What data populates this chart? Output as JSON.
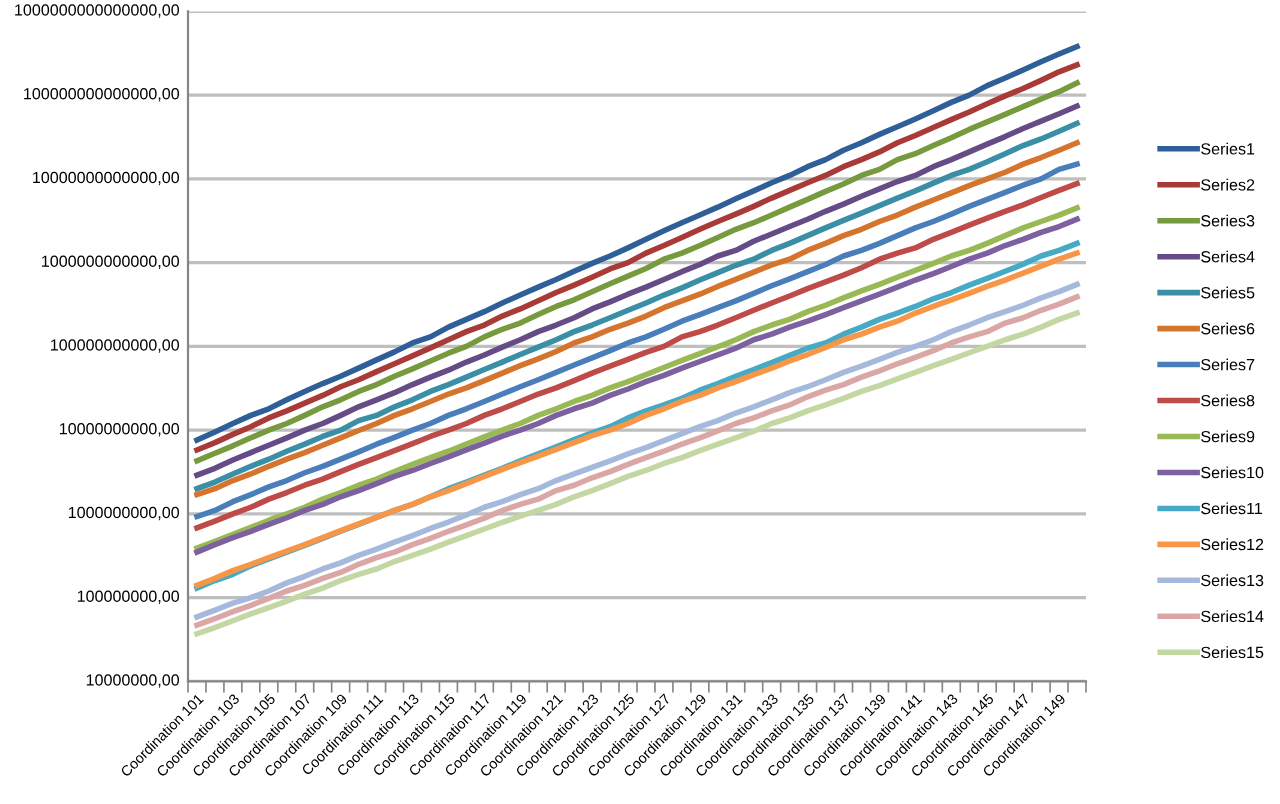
{
  "chart_data": {
    "type": "line",
    "categories": [
      "Coordination 101",
      null,
      "Coordination 103",
      null,
      "Coordination 105",
      null,
      "Coordination 107",
      null,
      "Coordination 109",
      null,
      "Coordination 111",
      null,
      "Coordination 113",
      null,
      "Coordination 115",
      null,
      "Coordination 117",
      null,
      "Coordination 119",
      null,
      "Coordination 121",
      null,
      "Coordination 123",
      null,
      "Coordination 125",
      null,
      "Coordination 127",
      null,
      "Coordination 129",
      null,
      "Coordination 131",
      null,
      "Coordination 133",
      null,
      "Coordination 135",
      null,
      "Coordination 137",
      null,
      "Coordination 139",
      null,
      "Coordination 141",
      null,
      "Coordination 143",
      null,
      "Coordination 145",
      null,
      "Coordination 147",
      null,
      "Coordination 149",
      null
    ],
    "log": "y",
    "ylim": [
      10000000.0,
      1000000000000000.0
    ],
    "yticks": [
      {
        "value": 10000000.0,
        "label": "10000000,00"
      },
      {
        "value": 100000000.0,
        "label": "100000000,00"
      },
      {
        "value": 1000000000.0,
        "label": "1000000000,00"
      },
      {
        "value": 10000000000.0,
        "label": "10000000000,00"
      },
      {
        "value": 100000000000.0,
        "label": "100000000000,00"
      },
      {
        "value": 1000000000000.0,
        "label": "1000000000000,00"
      },
      {
        "value": 10000000000000.0,
        "label": "10000000000000,00"
      },
      {
        "value": 100000000000000.0,
        "label": "100000000000000,00"
      },
      {
        "value": 1000000000000000.0,
        "label": "1000000000000000,00"
      }
    ],
    "grid": "y",
    "legend": "right",
    "marker": "none",
    "line_style": "solid",
    "series": [
      {
        "name": "Series1",
        "color": "#2f5f98",
        "values": [
          7600000000.0,
          9500000000.0,
          12000000000.0,
          15000000000.0,
          18000000000.0,
          23000000000.0,
          29000000000.0,
          36000000000.0,
          44000000000.0,
          55000000000.0,
          69000000000.0,
          86000000000.0,
          110000000000.0,
          130000000000.0,
          170000000000.0,
          210000000000.0,
          260000000000.0,
          330000000000.0,
          410000000000.0,
          510000000000.0,
          630000000000.0,
          790000000000.0,
          980000000000.0,
          1200000000000.0,
          1500000000000.0,
          1900000000000.0,
          2400000000000.0,
          3000000000000.0,
          3700000000000.0,
          4600000000000.0,
          5800000000000.0,
          7200000000000.0,
          9000000000000.0,
          11000000000000.0,
          14000000000000.0,
          17000000000000.0,
          22000000000000.0,
          27000000000000.0,
          34000000000000.0,
          42000000000000.0,
          52000000000000.0,
          65000000000000.0,
          82000000000000.0,
          100000000000000.0,
          130000000000000.0,
          160000000000000.0,
          200000000000000.0,
          250000000000000.0,
          310000000000000.0,
          380000000000000.0
        ]
      },
      {
        "name": "Series2",
        "color": "#a83a37",
        "values": [
          5800000000.0,
          7100000000.0,
          8900000000.0,
          11000000000.0,
          14000000000.0,
          17000000000.0,
          21000000000.0,
          26000000000.0,
          33000000000.0,
          40000000000.0,
          50000000000.0,
          62000000000.0,
          77000000000.0,
          96000000000.0,
          120000000000.0,
          150000000000.0,
          180000000000.0,
          230000000000.0,
          280000000000.0,
          350000000000.0,
          440000000000.0,
          540000000000.0,
          670000000000.0,
          840000000000.0,
          1000000000000.0,
          1300000000000.0,
          1600000000000.0,
          2000000000000.0,
          2500000000000.0,
          3100000000000.0,
          3800000000000.0,
          4700000000000.0,
          5900000000000.0,
          7300000000000.0,
          9000000000000.0,
          11000000000000.0,
          14000000000000.0,
          17000000000000.0,
          21000000000000.0,
          27000000000000.0,
          33000000000000.0,
          41000000000000.0,
          51000000000000.0,
          63000000000000.0,
          79000000000000.0,
          98000000000000.0,
          120000000000000.0,
          150000000000000.0,
          190000000000000.0,
          230000000000000.0
        ]
      },
      {
        "name": "Series3",
        "color": "#779a3e",
        "values": [
          4300000000.0,
          5300000000.0,
          6500000000.0,
          8100000000.0,
          10000000000.0,
          12000000000.0,
          15000000000.0,
          19000000000.0,
          23000000000.0,
          29000000000.0,
          35000000000.0,
          44000000000.0,
          54000000000.0,
          67000000000.0,
          83000000000.0,
          100000000000.0,
          130000000000.0,
          160000000000.0,
          190000000000.0,
          240000000000.0,
          300000000000.0,
          360000000000.0,
          450000000000.0,
          560000000000.0,
          690000000000.0,
          850000000000.0,
          1100000000000.0,
          1300000000000.0,
          1600000000000.0,
          2000000000000.0,
          2500000000000.0,
          3000000000000.0,
          3700000000000.0,
          4600000000000.0,
          5700000000000.0,
          7100000000000.0,
          8700000000000.0,
          11000000000000.0,
          13000000000000.0,
          17000000000000.0,
          20000000000000.0,
          25000000000000.0,
          31000000000000.0,
          39000000000000.0,
          48000000000000.0,
          59000000000000.0,
          73000000000000.0,
          90000000000000.0,
          110000000000000.0,
          140000000000000.0
        ]
      },
      {
        "name": "Series4",
        "color": "#654c86",
        "values": [
          2900000000.0,
          3500000000.0,
          4400000000.0,
          5400000000.0,
          6600000000.0,
          8100000000.0,
          10000000000.0,
          12000000000.0,
          15000000000.0,
          19000000000.0,
          23000000000.0,
          28000000000.0,
          35000000000.0,
          43000000000.0,
          52000000000.0,
          65000000000.0,
          79000000000.0,
          98000000000.0,
          120000000000.0,
          150000000000.0,
          180000000000.0,
          220000000000.0,
          280000000000.0,
          340000000000.0,
          420000000000.0,
          510000000000.0,
          630000000000.0,
          780000000000.0,
          950000000000.0,
          1200000000000.0,
          1400000000000.0,
          1800000000000.0,
          2200000000000.0,
          2700000000000.0,
          3300000000000.0,
          4100000000000.0,
          5000000000000.0,
          6200000000000.0,
          7600000000000.0,
          9300000000000.0,
          11000000000000.0,
          14000000000000.0,
          17000000000000.0,
          21000000000000.0,
          26000000000000.0,
          32000000000000.0,
          40000000000000.0,
          49000000000000.0,
          60000000000000.0,
          74000000000000.0
        ]
      },
      {
        "name": "Series5",
        "color": "#3a8ea6",
        "values": [
          2000000000.0,
          2400000000.0,
          3000000000.0,
          3700000000.0,
          4500000000.0,
          5600000000.0,
          6800000000.0,
          8400000000.0,
          10000000000.0,
          13000000000.0,
          15000000000.0,
          19000000000.0,
          23000000000.0,
          29000000000.0,
          35000000000.0,
          43000000000.0,
          53000000000.0,
          65000000000.0,
          80000000000.0,
          98000000000.0,
          120000000000.0,
          150000000000.0,
          180000000000.0,
          220000000000.0,
          270000000000.0,
          330000000000.0,
          410000000000.0,
          500000000000.0,
          620000000000.0,
          760000000000.0,
          930000000000.0,
          1100000000000.0,
          1400000000000.0,
          1700000000000.0,
          2100000000000.0,
          2600000000000.0,
          3200000000000.0,
          3900000000000.0,
          4800000000000.0,
          5900000000000.0,
          7200000000000.0,
          8900000000000.0,
          11000000000000.0,
          13000000000000.0,
          16000000000000.0,
          20000000000000.0,
          25000000000000.0,
          30000000000000.0,
          37000000000000.0,
          46000000000000.0
        ]
      },
      {
        "name": "Series6",
        "color": "#d5742d",
        "values": [
          1700000000.0,
          2000000000.0,
          2500000000.0,
          3000000000.0,
          3700000000.0,
          4500000000.0,
          5400000000.0,
          6600000000.0,
          8100000000.0,
          9900000000.0,
          12000000000.0,
          15000000000.0,
          18000000000.0,
          22000000000.0,
          27000000000.0,
          32000000000.0,
          39000000000.0,
          48000000000.0,
          59000000000.0,
          71000000000.0,
          87000000000.0,
          110000000000.0,
          130000000000.0,
          160000000000.0,
          190000000000.0,
          230000000000.0,
          290000000000.0,
          350000000000.0,
          420000000000.0,
          520000000000.0,
          630000000000.0,
          770000000000.0,
          940000000000.0,
          1100000000000.0,
          1400000000000.0,
          1700000000000.0,
          2100000000000.0,
          2500000000000.0,
          3100000000000.0,
          3700000000000.0,
          4600000000000.0,
          5600000000000.0,
          6800000000000.0,
          8300000000000.0,
          10000000000000.0,
          12000000000000.0,
          15000000000000.0,
          18000000000000.0,
          22000000000000.0,
          27000000000000.0
        ]
      },
      {
        "name": "Series7",
        "color": "#4a7ebb",
        "values": [
          930000000.0,
          1100000000.0,
          1400000000.0,
          1700000000.0,
          2100000000.0,
          2500000000.0,
          3100000000.0,
          3700000000.0,
          4500000000.0,
          5500000000.0,
          6800000000.0,
          8200000000.0,
          10000000000.0,
          12000000000.0,
          15000000000.0,
          18000000000.0,
          22000000000.0,
          27000000000.0,
          33000000000.0,
          40000000000.0,
          49000000000.0,
          60000000000.0,
          73000000000.0,
          89000000000.0,
          110000000000.0,
          130000000000.0,
          160000000000.0,
          200000000000.0,
          240000000000.0,
          290000000000.0,
          350000000000.0,
          430000000000.0,
          530000000000.0,
          640000000000.0,
          780000000000.0,
          950000000000.0,
          1200000000000.0,
          1400000000000.0,
          1700000000000.0,
          2100000000000.0,
          2600000000000.0,
          3100000000000.0,
          3800000000000.0,
          4700000000000.0,
          5700000000000.0,
          6900000000000.0,
          8400000000000.0,
          10000000000000.0,
          13000000000000.0,
          15000000000000.0
        ]
      },
      {
        "name": "Series8",
        "color": "#be4b48",
        "values": [
          680000000.0,
          820000000.0,
          1000000000.0,
          1200000000.0,
          1500000000.0,
          1800000000.0,
          2200000000.0,
          2600000000.0,
          3200000000.0,
          3900000000.0,
          4700000000.0,
          5700000000.0,
          6900000000.0,
          8400000000.0,
          10000000000.0,
          12000000000.0,
          15000000000.0,
          18000000000.0,
          22000000000.0,
          27000000000.0,
          32000000000.0,
          39000000000.0,
          48000000000.0,
          58000000000.0,
          70000000000.0,
          85000000000.0,
          100000000000.0,
          130000000000.0,
          150000000000.0,
          180000000000.0,
          220000000000.0,
          270000000000.0,
          330000000000.0,
          400000000000.0,
          490000000000.0,
          590000000000.0,
          710000000000.0,
          870000000000.0,
          1100000000000.0,
          1300000000000.0,
          1500000000000.0,
          1900000000000.0,
          2300000000000.0,
          2800000000000.0,
          3400000000000.0,
          4100000000000.0,
          4900000000000.0,
          6000000000000.0,
          7300000000000.0,
          8800000000000.0
        ]
      },
      {
        "name": "Series9",
        "color": "#98b954",
        "values": [
          390000000.0,
          470000000.0,
          570000000.0,
          690000000.0,
          840000000.0,
          1000000000.0,
          1200000000.0,
          1500000000.0,
          1800000000.0,
          2200000000.0,
          2600000000.0,
          3200000000.0,
          3900000000.0,
          4700000000.0,
          5600000000.0,
          6800000000.0,
          8300000000.0,
          10000000000.0,
          12000000000.0,
          15000000000.0,
          18000000000.0,
          22000000000.0,
          26000000000.0,
          32000000000.0,
          38000000000.0,
          46000000000.0,
          56000000000.0,
          68000000000.0,
          82000000000.0,
          99000000000.0,
          120000000000.0,
          150000000000.0,
          180000000000.0,
          210000000000.0,
          260000000000.0,
          310000000000.0,
          380000000000.0,
          460000000000.0,
          550000000000.0,
          670000000000.0,
          810000000000.0,
          980000000000.0,
          1200000000000.0,
          1400000000000.0,
          1700000000000.0,
          2100000000000.0,
          2600000000000.0,
          3100000000000.0,
          3700000000000.0,
          4500000000000.0
        ]
      },
      {
        "name": "Series10",
        "color": "#7d60a0",
        "values": [
          350000000.0,
          430000000.0,
          520000000.0,
          620000000.0,
          750000000.0,
          900000000.0,
          1100000000.0,
          1300000000.0,
          1600000000.0,
          1900000000.0,
          2300000000.0,
          2800000000.0,
          3300000000.0,
          4000000000.0,
          4800000000.0,
          5800000000.0,
          7000000000.0,
          8500000000.0,
          10000000000.0,
          12000000000.0,
          15000000000.0,
          18000000000.0,
          21000000000.0,
          26000000000.0,
          31000000000.0,
          38000000000.0,
          45000000000.0,
          55000000000.0,
          66000000000.0,
          79000000000.0,
          95000000000.0,
          120000000000.0,
          140000000000.0,
          170000000000.0,
          200000000000.0,
          240000000000.0,
          290000000000.0,
          350000000000.0,
          420000000000.0,
          510000000000.0,
          620000000000.0,
          740000000000.0,
          900000000000.0,
          1100000000000.0,
          1300000000000.0,
          1600000000000.0,
          1900000000000.0,
          2300000000000.0,
          2700000000000.0,
          3300000000000.0
        ]
      },
      {
        "name": "Series11",
        "color": "#46aac5",
        "values": [
          130000000.0,
          160000000.0,
          190000000.0,
          240000000.0,
          290000000.0,
          350000000.0,
          420000000.0,
          510000000.0,
          620000000.0,
          750000000.0,
          910000000.0,
          1100000000.0,
          1300000000.0,
          1600000000.0,
          2000000000.0,
          2400000000.0,
          2900000000.0,
          3500000000.0,
          4300000000.0,
          5200000000.0,
          6300000000.0,
          7700000000.0,
          9300000000.0,
          11000000000.0,
          14000000000.0,
          17000000000.0,
          20000000000.0,
          24000000000.0,
          30000000000.0,
          36000000000.0,
          44000000000.0,
          53000000000.0,
          64000000000.0,
          78000000000.0,
          95000000000.0,
          110000000000.0,
          140000000000.0,
          170000000000.0,
          210000000000.0,
          250000000000.0,
          300000000000.0,
          370000000000.0,
          440000000000.0,
          540000000000.0,
          650000000000.0,
          790000000000.0,
          960000000000.0,
          1200000000000.0,
          1400000000000.0,
          1700000000000.0
        ]
      },
      {
        "name": "Series12",
        "color": "#f79646",
        "values": [
          140000000.0,
          170000000.0,
          210000000.0,
          250000000.0,
          300000000.0,
          360000000.0,
          430000000.0,
          520000000.0,
          630000000.0,
          760000000.0,
          910000000.0,
          1100000000.0,
          1300000000.0,
          1600000000.0,
          1900000000.0,
          2300000000.0,
          2800000000.0,
          3400000000.0,
          4100000000.0,
          4900000000.0,
          5900000000.0,
          7100000000.0,
          8600000000.0,
          10000000000.0,
          12000000000.0,
          15000000000.0,
          18000000000.0,
          22000000000.0,
          26000000000.0,
          32000000000.0,
          38000000000.0,
          46000000000.0,
          55000000000.0,
          67000000000.0,
          80000000000.0,
          97000000000.0,
          120000000000.0,
          140000000000.0,
          170000000000.0,
          200000000000.0,
          250000000000.0,
          300000000000.0,
          360000000000.0,
          430000000000.0,
          520000000000.0,
          620000000000.0,
          750000000000.0,
          910000000000.0,
          1100000000000.0,
          1300000000000.0
        ]
      },
      {
        "name": "Series13",
        "color": "#a5b9dc",
        "values": [
          59000000.0,
          71000000.0,
          86000000.0,
          100000000.0,
          120000000.0,
          150000000.0,
          180000000.0,
          220000000.0,
          260000000.0,
          320000000.0,
          380000000.0,
          460000000.0,
          550000000.0,
          670000000.0,
          800000000.0,
          970000000.0,
          1200000000.0,
          1400000000.0,
          1700000000.0,
          2000000000.0,
          2500000000.0,
          3000000000.0,
          3600000000.0,
          4300000000.0,
          5200000000.0,
          6200000000.0,
          7500000000.0,
          9100000000.0,
          11000000000.0,
          13000000000.0,
          16000000000.0,
          19000000000.0,
          23000000000.0,
          28000000000.0,
          33000000000.0,
          40000000000.0,
          49000000000.0,
          58000000000.0,
          70000000000.0,
          85000000000.0,
          100000000000.0,
          120000000000.0,
          150000000000.0,
          180000000000.0,
          220000000000.0,
          260000000000.0,
          310000000000.0,
          380000000000.0,
          450000000000.0,
          550000000000.0
        ]
      },
      {
        "name": "Series14",
        "color": "#dba7a6",
        "values": [
          47000000.0,
          56000000.0,
          68000000.0,
          81000000.0,
          98000000.0,
          120000000.0,
          140000000.0,
          170000000.0,
          200000000.0,
          250000000.0,
          300000000.0,
          350000000.0,
          430000000.0,
          510000000.0,
          620000000.0,
          740000000.0,
          890000000.0,
          1100000000.0,
          1300000000.0,
          1500000000.0,
          1900000000.0,
          2200000000.0,
          2700000000.0,
          3200000000.0,
          3900000000.0,
          4700000000.0,
          5600000000.0,
          6800000000.0,
          8100000000.0,
          9800000000.0,
          12000000000.0,
          14000000000.0,
          17000000000.0,
          20000000000.0,
          25000000000.0,
          30000000000.0,
          35000000000.0,
          43000000000.0,
          51000000000.0,
          62000000000.0,
          74000000000.0,
          89000000000.0,
          110000000000.0,
          130000000000.0,
          150000000000.0,
          190000000000.0,
          220000000000.0,
          270000000000.0,
          320000000000.0,
          390000000000.0
        ]
      },
      {
        "name": "Series15",
        "color": "#c3d7a3",
        "values": [
          37000000.0,
          44000000.0,
          53000000.0,
          64000000.0,
          76000000.0,
          91000000.0,
          110000000.0,
          130000000.0,
          160000000.0,
          190000000.0,
          220000000.0,
          270000000.0,
          320000000.0,
          380000000.0,
          460000000.0,
          550000000.0,
          660000000.0,
          790000000.0,
          940000000.0,
          1100000000.0,
          1300000000.0,
          1600000000.0,
          1900000000.0,
          2300000000.0,
          2800000000.0,
          3300000000.0,
          4000000000.0,
          4700000000.0,
          5700000000.0,
          6800000000.0,
          8100000000.0,
          9700000000.0,
          12000000000.0,
          14000000000.0,
          17000000000.0,
          20000000000.0,
          24000000000.0,
          29000000000.0,
          34000000000.0,
          41000000000.0,
          49000000000.0,
          59000000000.0,
          70000000000.0,
          84000000000.0,
          100000000000.0,
          120000000000.0,
          140000000000.0,
          170000000000.0,
          210000000000.0,
          250000000000.0
        ]
      }
    ]
  }
}
